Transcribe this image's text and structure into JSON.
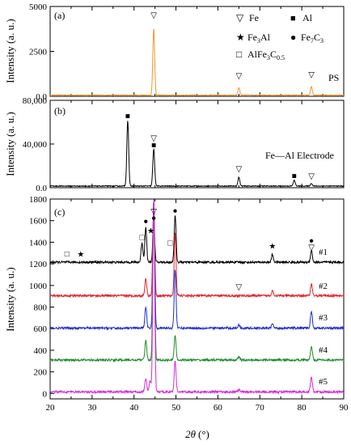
{
  "chart_data": [
    {
      "panel": "(a)",
      "type": "line",
      "ylabel": "Intensity (a. u.)",
      "ylim": [
        0,
        5000
      ],
      "yticks": [
        "0.0",
        "2500",
        "5000"
      ],
      "xlim": [
        20,
        90
      ],
      "series": [
        {
          "name": "PS",
          "color": "#f0962e",
          "baseline": 60,
          "peaks": [
            {
              "x": 44.7,
              "y": 3700
            },
            {
              "x": 65.0,
              "y": 420
            },
            {
              "x": 82.3,
              "y": 480
            }
          ]
        }
      ],
      "markers": [
        {
          "symbol": "▽",
          "x": 44.7,
          "y": 4380
        },
        {
          "symbol": "▽",
          "x": 65.0,
          "y": 1000
        },
        {
          "symbol": "▽",
          "x": 82.3,
          "y": 1050
        }
      ],
      "legend": {
        "items": [
          {
            "symbol": "▽",
            "label": "Fe"
          },
          {
            "symbol": "■",
            "label": "Al"
          },
          {
            "symbol": "★",
            "label": "Fe",
            "sub": "3",
            "tail": "Al"
          },
          {
            "symbol": "●",
            "label": "Fe",
            "sub": "7",
            "tail": "C",
            "sub2": "3"
          },
          {
            "symbol": "□",
            "label": "AlFe",
            "sub": "3",
            "tail": "C",
            "sub2": "0.5"
          }
        ]
      }
    },
    {
      "panel": "(b)",
      "type": "line",
      "ylabel": "Intensity (a. u.)",
      "ylim": [
        0,
        80000
      ],
      "yticks": [
        "0.0",
        "40,000",
        "80,000"
      ],
      "xlim": [
        20,
        90
      ],
      "series": [
        {
          "name": "Fe—Al Electrode",
          "color": "#000000",
          "baseline": 1500,
          "peaks": [
            {
              "x": 38.5,
              "y": 60000
            },
            {
              "x": 44.7,
              "y": 34000
            },
            {
              "x": 65.0,
              "y": 8000
            },
            {
              "x": 78.2,
              "y": 5500
            },
            {
              "x": 82.3,
              "y": 2500
            }
          ]
        }
      ],
      "markers": [
        {
          "symbol": "■",
          "x": 38.5,
          "y": 63500
        },
        {
          "symbol": "▽",
          "x": 44.7,
          "y": 43000
        },
        {
          "symbol": "■",
          "x": 44.7,
          "y": 36500
        },
        {
          "symbol": "▽",
          "x": 65.0,
          "y": 15000
        },
        {
          "symbol": "■",
          "x": 78.2,
          "y": 8500
        },
        {
          "symbol": "▽",
          "x": 82.3,
          "y": 8000
        }
      ]
    },
    {
      "panel": "(c)",
      "type": "line",
      "ylabel": "Intensity (a. u.)",
      "xlabel_italic": "2θ",
      "xlabel_unit": "(°)",
      "ylim": [
        -50,
        1800
      ],
      "yticks": [
        0,
        200,
        400,
        600,
        800,
        1000,
        1200,
        1400,
        1600,
        1800
      ],
      "xlim": [
        20,
        90
      ],
      "xticks": [
        20,
        30,
        40,
        50,
        60,
        70,
        80,
        90
      ],
      "series": [
        {
          "name": "#1",
          "color": "#000000",
          "baseline": 1215,
          "peaks": [
            {
              "x": 41.9,
              "y": 180
            },
            {
              "x": 42.8,
              "y": 320
            },
            {
              "x": 44.7,
              "y": 380
            },
            {
              "x": 49.8,
              "y": 430
            },
            {
              "x": 73.0,
              "y": 70
            },
            {
              "x": 82.3,
              "y": 110
            }
          ]
        },
        {
          "name": "#2",
          "color": "#e0262d",
          "baseline": 905,
          "peaks": [
            {
              "x": 42.8,
              "y": 160
            },
            {
              "x": 44.7,
              "y": 880
            },
            {
              "x": 49.8,
              "y": 580
            },
            {
              "x": 73.0,
              "y": 50
            },
            {
              "x": 82.3,
              "y": 110
            }
          ]
        },
        {
          "name": "#3",
          "color": "#1f2fd0",
          "baseline": 605,
          "peaks": [
            {
              "x": 42.8,
              "y": 200
            },
            {
              "x": 44.7,
              "y": 1180
            },
            {
              "x": 49.8,
              "y": 540
            },
            {
              "x": 65.0,
              "y": 30
            },
            {
              "x": 73.0,
              "y": 40
            },
            {
              "x": 82.3,
              "y": 160
            }
          ]
        },
        {
          "name": "#4",
          "color": "#1e8c2a",
          "baseline": 310,
          "peaks": [
            {
              "x": 42.8,
              "y": 180
            },
            {
              "x": 44.7,
              "y": 1480
            },
            {
              "x": 49.8,
              "y": 230
            },
            {
              "x": 65.0,
              "y": 30
            },
            {
              "x": 82.3,
              "y": 130
            }
          ]
        },
        {
          "name": "#5",
          "color": "#d62ad6",
          "baseline": 15,
          "peaks": [
            {
              "x": 42.8,
              "y": 120
            },
            {
              "x": 43.8,
              "y": 100
            },
            {
              "x": 44.7,
              "y": 1780
            },
            {
              "x": 49.8,
              "y": 280
            },
            {
              "x": 65.0,
              "y": 20
            },
            {
              "x": 82.3,
              "y": 140
            }
          ]
        }
      ],
      "markers": [
        {
          "symbol": "□",
          "x": 24.0,
          "y": 1270
        },
        {
          "symbol": "★",
          "x": 27.3,
          "y": 1265
        },
        {
          "symbol": "□",
          "x": 41.9,
          "y": 1420
        },
        {
          "symbol": "●",
          "x": 42.8,
          "y": 1570
        },
        {
          "symbol": "★",
          "x": 44.0,
          "y": 1480
        },
        {
          "symbol": "●",
          "x": 44.7,
          "y": 1600
        },
        {
          "symbol": "▽",
          "x": 44.7,
          "y": 1660
        },
        {
          "symbol": "□",
          "x": 48.6,
          "y": 1370
        },
        {
          "symbol": "●",
          "x": 49.8,
          "y": 1670
        },
        {
          "symbol": "★",
          "x": 73.0,
          "y": 1340
        },
        {
          "symbol": "●",
          "x": 82.3,
          "y": 1390
        },
        {
          "symbol": "▽",
          "x": 82.3,
          "y": 1330
        },
        {
          "symbol": "▽",
          "x": 65.0,
          "y": 960
        }
      ]
    }
  ]
}
